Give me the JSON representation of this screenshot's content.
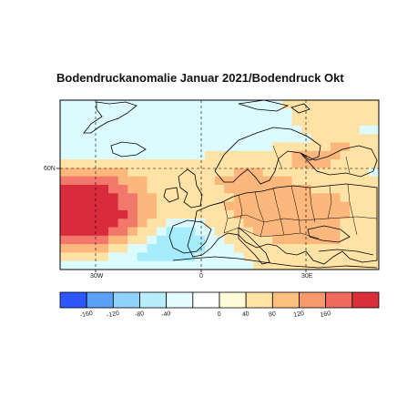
{
  "title": "Bodendruckanomalie Januar 2021/Bodendruck Okt",
  "map": {
    "lat_labels": [
      "60N"
    ],
    "lon_labels": [
      "30W",
      "0",
      "30E"
    ],
    "anomaly_grid_note": "values in colorbar units, coarse 2° boxes",
    "grid": [
      [
        0,
        0,
        0,
        0,
        0,
        0,
        0,
        0,
        0,
        0,
        0,
        0,
        0,
        0,
        0,
        0,
        0,
        0,
        0,
        0,
        0,
        0,
        0,
        40,
        40,
        40,
        40,
        40,
        40,
        40,
        40,
        40,
        40
      ],
      [
        0,
        0,
        0,
        0,
        0,
        0,
        0,
        0,
        0,
        0,
        0,
        0,
        0,
        0,
        0,
        0,
        0,
        0,
        0,
        0,
        0,
        0,
        0,
        0,
        40,
        40,
        40,
        40,
        40,
        40,
        40,
        40,
        40
      ],
      [
        0,
        0,
        0,
        0,
        0,
        0,
        0,
        0,
        0,
        0,
        0,
        0,
        0,
        0,
        0,
        0,
        0,
        0,
        0,
        0,
        0,
        0,
        0,
        0,
        40,
        40,
        40,
        40,
        40,
        40,
        40,
        40,
        40
      ],
      [
        0,
        0,
        0,
        0,
        0,
        0,
        0,
        0,
        0,
        0,
        0,
        0,
        0,
        0,
        0,
        0,
        0,
        0,
        0,
        0,
        0,
        0,
        0,
        0,
        0,
        40,
        40,
        40,
        40,
        40,
        40,
        0,
        0
      ],
      [
        0,
        0,
        0,
        0,
        0,
        0,
        0,
        0,
        0,
        0,
        0,
        0,
        0,
        0,
        0,
        0,
        0,
        0,
        0,
        0,
        0,
        0,
        0,
        0,
        0,
        0,
        40,
        40,
        40,
        40,
        40,
        40,
        40
      ],
      [
        0,
        0,
        0,
        0,
        0,
        0,
        0,
        0,
        0,
        0,
        0,
        0,
        0,
        0,
        0,
        0,
        0,
        0,
        0,
        0,
        0,
        0,
        40,
        40,
        40,
        40,
        40,
        40,
        80,
        80,
        40,
        40,
        40
      ],
      [
        0,
        0,
        0,
        0,
        0,
        0,
        0,
        0,
        0,
        0,
        0,
        0,
        0,
        0,
        0,
        40,
        40,
        40,
        40,
        40,
        40,
        40,
        40,
        40,
        80,
        80,
        80,
        80,
        80,
        40,
        40,
        40,
        40
      ],
      [
        40,
        40,
        40,
        40,
        40,
        40,
        40,
        40,
        40,
        40,
        40,
        40,
        40,
        40,
        40,
        40,
        40,
        40,
        40,
        40,
        40,
        40,
        40,
        40,
        80,
        80,
        80,
        80,
        40,
        40,
        40,
        40,
        40
      ],
      [
        80,
        80,
        80,
        80,
        80,
        80,
        80,
        40,
        40,
        40,
        40,
        40,
        40,
        40,
        40,
        40,
        40,
        40,
        80,
        80,
        80,
        40,
        40,
        40,
        40,
        40,
        40,
        40,
        40,
        40,
        40,
        40,
        0
      ],
      [
        120,
        120,
        120,
        120,
        120,
        120,
        80,
        80,
        80,
        40,
        40,
        40,
        40,
        40,
        40,
        40,
        80,
        80,
        80,
        80,
        80,
        80,
        80,
        80,
        40,
        40,
        40,
        40,
        40,
        40,
        40,
        40,
        40
      ],
      [
        160,
        160,
        160,
        160,
        160,
        120,
        120,
        80,
        80,
        40,
        40,
        40,
        40,
        40,
        40,
        40,
        40,
        80,
        80,
        80,
        80,
        80,
        80,
        80,
        80,
        80,
        40,
        40,
        40,
        40,
        40,
        40,
        40
      ],
      [
        160,
        160,
        160,
        160,
        160,
        160,
        120,
        120,
        80,
        80,
        40,
        40,
        40,
        40,
        40,
        40,
        40,
        40,
        80,
        80,
        80,
        80,
        80,
        80,
        80,
        80,
        80,
        80,
        80,
        40,
        40,
        40,
        40
      ],
      [
        160,
        160,
        160,
        160,
        160,
        160,
        120,
        120,
        80,
        80,
        40,
        40,
        40,
        40,
        40,
        40,
        40,
        80,
        80,
        80,
        80,
        80,
        80,
        80,
        80,
        80,
        80,
        80,
        80,
        80,
        40,
        40,
        40
      ],
      [
        160,
        160,
        160,
        160,
        160,
        160,
        160,
        120,
        80,
        80,
        40,
        40,
        40,
        40,
        40,
        40,
        40,
        40,
        80,
        80,
        80,
        80,
        80,
        80,
        80,
        80,
        80,
        80,
        80,
        80,
        40,
        40,
        40
      ],
      [
        160,
        160,
        160,
        160,
        160,
        160,
        120,
        120,
        80,
        40,
        40,
        0,
        0,
        0,
        0,
        40,
        40,
        40,
        40,
        80,
        80,
        80,
        80,
        80,
        80,
        80,
        80,
        80,
        80,
        40,
        40,
        40,
        40
      ],
      [
        160,
        160,
        160,
        160,
        160,
        120,
        120,
        80,
        40,
        40,
        0,
        -40,
        -40,
        -40,
        0,
        0,
        40,
        40,
        40,
        40,
        80,
        80,
        80,
        80,
        80,
        80,
        80,
        80,
        80,
        40,
        40,
        40,
        40
      ],
      [
        120,
        120,
        120,
        120,
        120,
        80,
        80,
        40,
        40,
        0,
        -40,
        -40,
        -40,
        -40,
        -40,
        0,
        0,
        40,
        40,
        40,
        40,
        40,
        80,
        80,
        80,
        80,
        80,
        80,
        80,
        40,
        40,
        40,
        40
      ],
      [
        80,
        80,
        80,
        80,
        80,
        40,
        40,
        0,
        0,
        -40,
        -40,
        -40,
        -40,
        -40,
        -40,
        0,
        0,
        0,
        40,
        40,
        40,
        40,
        40,
        40,
        40,
        40,
        40,
        40,
        40,
        40,
        40,
        40,
        40
      ],
      [
        40,
        40,
        40,
        40,
        40,
        0,
        0,
        0,
        -40,
        -40,
        -40,
        -40,
        -40,
        -40,
        0,
        0,
        0,
        0,
        0,
        40,
        40,
        40,
        40,
        40,
        40,
        40,
        40,
        40,
        40,
        40,
        40,
        40,
        40
      ],
      [
        0,
        0,
        0,
        0,
        0,
        0,
        0,
        0,
        0,
        0,
        0,
        0,
        0,
        0,
        0,
        0,
        0,
        0,
        0,
        0,
        40,
        40,
        40,
        40,
        40,
        40,
        40,
        40,
        40,
        40,
        40,
        40,
        40
      ]
    ]
  },
  "colorbar": {
    "levels": [
      "-160",
      "-120",
      "-80",
      "-40",
      "0",
      "40",
      "80",
      "120",
      "160"
    ],
    "colors": [
      "#2f55ff",
      "#5aa0f5",
      "#8fd3fb",
      "#b8eefc",
      "#e4fbff",
      "#ffffff",
      "#fffdd9",
      "#ffe3a2",
      "#fcc07e",
      "#f79a6b",
      "#ee6b5e",
      "#d92f3a"
    ]
  },
  "legend_colors": {
    "lt_neg40": "#a6ecfd",
    "neg40_0": "#dcfbff",
    "0_40": "#fffbcd",
    "40_80": "#ffe2a6",
    "80_120": "#fbb77c",
    "120_160": "#f1786a",
    "gt_160": "#d92b3b"
  }
}
